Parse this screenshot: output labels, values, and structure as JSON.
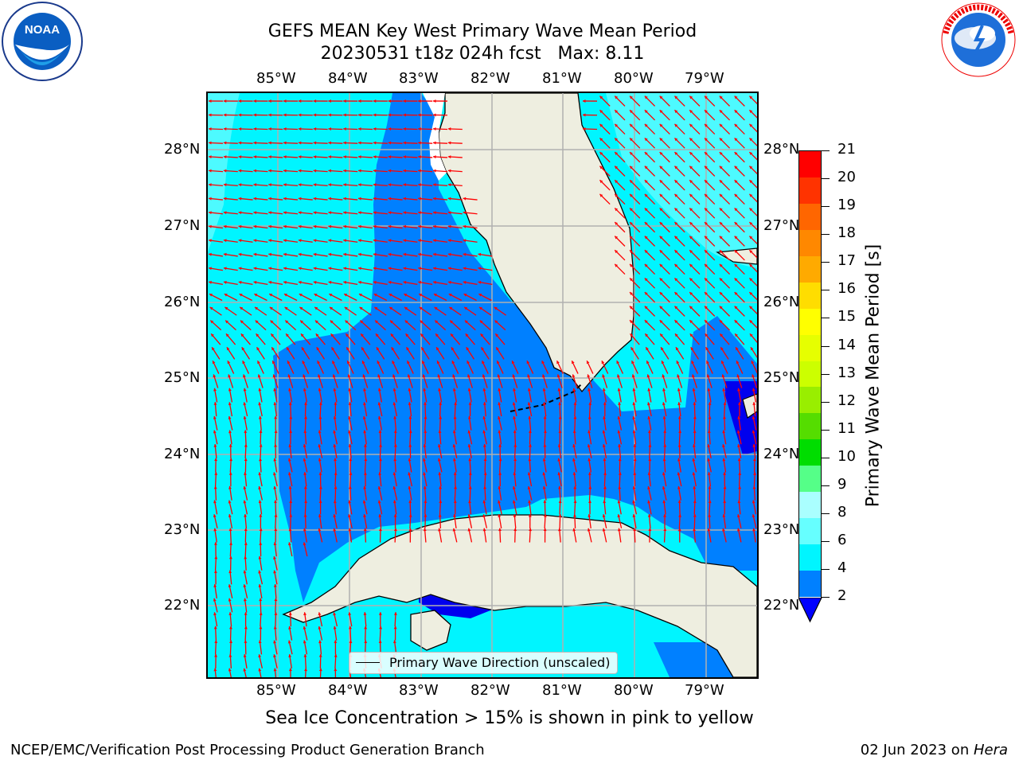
{
  "header": {
    "title_line1": "GEFS MEAN Key West Primary Wave Mean Period",
    "title_line2": "20230531 t18z 024h fcst   Max: 8.11"
  },
  "logos": {
    "left": {
      "text": "NOAA",
      "ring_text": "NATIONAL OCEANIC AND ATMOSPHERIC ADMINISTRATION · U.S. DEPARTMENT OF COMMERCE"
    },
    "right": {
      "ring_text": "NATIONAL WEATHER SERVICE"
    }
  },
  "map": {
    "lon_labels": [
      "85°W",
      "84°W",
      "83°W",
      "82°W",
      "81°W",
      "80°W",
      "79°W"
    ],
    "lat_labels": [
      "28°N",
      "27°N",
      "26°N",
      "25°N",
      "24°N",
      "23°N",
      "22°N"
    ],
    "legend_label": "Primary Wave Direction (unscaled)",
    "colors": {
      "land": "#eeeee0",
      "ocean_4_6": "#00f5ff",
      "ocean_6_8": "#4dfaff",
      "ocean_2_4": "#0080ff",
      "ocean_below_2": "#0000ee",
      "arrow": "#ff0000",
      "grid": "#b0b0b0"
    }
  },
  "colorbar": {
    "label": "Primary Wave Mean Period [s]",
    "ticks": [
      "21",
      "20",
      "19",
      "18",
      "17",
      "16",
      "15",
      "14",
      "13",
      "12",
      "11",
      "10",
      "9",
      "8",
      "6",
      "4",
      "2"
    ],
    "colors": [
      "#ff0000",
      "#ff3300",
      "#ff6600",
      "#ff8800",
      "#ffaa00",
      "#ffdd00",
      "#ffff00",
      "#e6ff00",
      "#ccff00",
      "#99ee00",
      "#55dd00",
      "#00dd00",
      "#55ff88",
      "#aaffff",
      "#66ffff",
      "#00f5ff",
      "#0080ff"
    ],
    "extend_color": "#0000ff"
  },
  "footer": {
    "note": "Sea Ice Concentration > 15% is shown in pink to yellow",
    "left": "NCEP/EMC/Verification Post Processing Product Generation Branch",
    "right_date": "02 Jun 2023 on ",
    "right_host": "Hera"
  }
}
